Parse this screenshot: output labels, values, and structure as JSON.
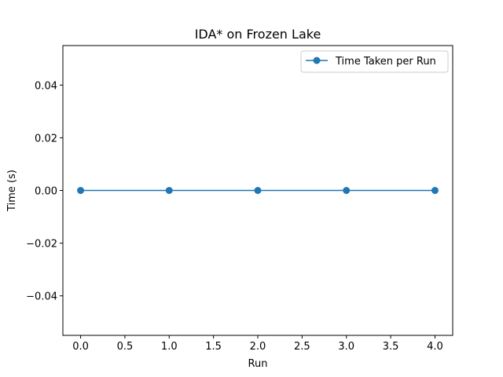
{
  "chart_data": {
    "type": "line",
    "title": "IDA* on Frozen Lake",
    "xlabel": "Run",
    "ylabel": "Time (s)",
    "x": [
      0,
      1,
      2,
      3,
      4
    ],
    "series": [
      {
        "name": "Time Taken per Run",
        "values": [
          0,
          0,
          0,
          0,
          0
        ],
        "color": "#1f77b4",
        "marker": "circle"
      }
    ],
    "xlim": [
      -0.2,
      4.2
    ],
    "ylim": [
      -0.055,
      0.055
    ],
    "xticks": [
      0.0,
      0.5,
      1.0,
      1.5,
      2.0,
      2.5,
      3.0,
      3.5,
      4.0
    ],
    "xtick_labels": [
      "0.0",
      "0.5",
      "1.0",
      "1.5",
      "2.0",
      "2.5",
      "3.0",
      "3.5",
      "4.0"
    ],
    "yticks": [
      -0.04,
      -0.02,
      0.0,
      0.02,
      0.04
    ],
    "ytick_labels": [
      "−0.04",
      "−0.02",
      "0.00",
      "0.02",
      "0.04"
    ],
    "grid": false,
    "legend_position": "top-right"
  }
}
